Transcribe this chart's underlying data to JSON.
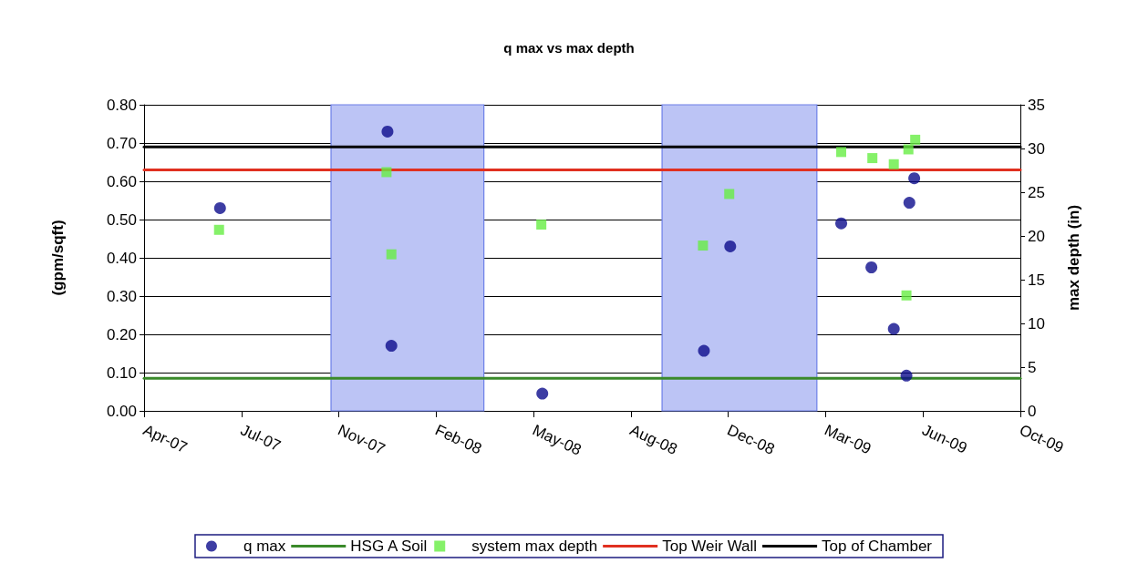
{
  "chart_data": {
    "type": "scatter",
    "title": "q max vs max depth",
    "ylabel": "(gpm/sqft)",
    "y2label": "max depth (in)",
    "xlim": [
      "2007-04-17",
      "2009-10-03"
    ],
    "xticks": [
      {
        "value": "2007-04-17",
        "label": "Apr-07"
      },
      {
        "value": "2007-07-26",
        "label": "Jul-07"
      },
      {
        "value": "2007-11-03",
        "label": "Nov-07"
      },
      {
        "value": "2008-02-11",
        "label": "Feb-08"
      },
      {
        "value": "2008-05-21",
        "label": "May-08"
      },
      {
        "value": "2008-08-29",
        "label": "Aug-08"
      },
      {
        "value": "2008-12-07",
        "label": "Dec-08"
      },
      {
        "value": "2009-03-17",
        "label": "Mar-09"
      },
      {
        "value": "2009-06-25",
        "label": "Jun-09"
      },
      {
        "value": "2009-10-03",
        "label": "Oct-09"
      }
    ],
    "ylim": [
      0,
      0.8
    ],
    "yticks": [
      {
        "value": 0,
        "label": "0.00"
      },
      {
        "value": 0.1,
        "label": "0.10"
      },
      {
        "value": 0.2,
        "label": "0.20"
      },
      {
        "value": 0.3,
        "label": "0.30"
      },
      {
        "value": 0.4,
        "label": "0.40"
      },
      {
        "value": 0.5,
        "label": "0.50"
      },
      {
        "value": 0.6,
        "label": "0.60"
      },
      {
        "value": 0.7,
        "label": "0.70"
      },
      {
        "value": 0.8,
        "label": "0.80"
      }
    ],
    "y2lim": [
      0,
      35
    ],
    "y2ticks": [
      0,
      5,
      10,
      15,
      20,
      25,
      30,
      35
    ],
    "grid": "y",
    "legend": "bottom",
    "bands": [
      {
        "axis": "x",
        "from": "2007-10-26",
        "to": "2008-03-31",
        "color": "#bcc4f5"
      },
      {
        "axis": "x",
        "from": "2008-09-30",
        "to": "2009-03-08",
        "color": "#bcc4f5"
      }
    ],
    "series": [
      {
        "name": "q max",
        "marker": "circle",
        "color": "#0c0c8c",
        "x": [
          "2007-07-04",
          "2007-12-23",
          "2007-12-27",
          "2008-05-30",
          "2008-11-12",
          "2008-12-09",
          "2009-04-02",
          "2009-05-03",
          "2009-05-26",
          "2009-06-08",
          "2009-06-11",
          "2009-06-16"
        ],
        "values": [
          0.53,
          0.73,
          0.17,
          0.045,
          0.157,
          0.43,
          0.49,
          0.375,
          0.214,
          0.092,
          0.544,
          0.608
        ]
      },
      {
        "name": "HSG A Soil",
        "type": "line",
        "marker": "none",
        "color": "#3a8a2a",
        "x": [
          "2007-04-17",
          "2009-10-03"
        ],
        "values": [
          0.085,
          0.085
        ]
      },
      {
        "name": "system max depth",
        "marker": "square",
        "axis": "y2",
        "color": "#66ee44",
        "x": [
          "2007-07-03",
          "2007-12-22",
          "2007-12-27",
          "2008-05-29",
          "2008-11-11",
          "2008-12-08",
          "2009-04-02",
          "2009-05-04",
          "2009-05-26",
          "2009-06-08",
          "2009-06-10",
          "2009-06-17"
        ],
        "values": [
          20.7,
          27.3,
          17.9,
          21.3,
          18.9,
          24.8,
          29.6,
          28.9,
          28.2,
          13.2,
          29.9,
          31.0
        ]
      },
      {
        "name": "Top Weir Wall",
        "type": "line",
        "marker": "none",
        "color": "#e03020",
        "x": [
          "2007-04-17",
          "2009-10-03"
        ],
        "values": [
          0.63,
          0.63
        ]
      },
      {
        "name": "Top of Chamber",
        "type": "line",
        "marker": "none",
        "color": "#000000",
        "x": [
          "2007-04-17",
          "2009-10-03"
        ],
        "values": [
          0.69,
          0.69
        ]
      }
    ]
  }
}
